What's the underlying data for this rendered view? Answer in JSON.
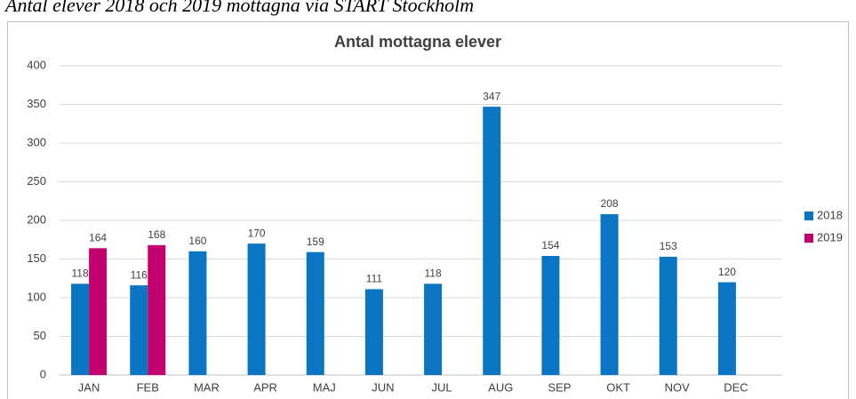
{
  "caption": "Antal elever 2018 och 2019 mottagna via START Stockholm",
  "chart_data": {
    "type": "bar",
    "title": "Antal mottagna elever",
    "categories": [
      "JAN",
      "FEB",
      "MAR",
      "APR",
      "MAJ",
      "JUN",
      "JUL",
      "AUG",
      "SEP",
      "OKT",
      "NOV",
      "DEC"
    ],
    "series": [
      {
        "name": "2018",
        "color": "#0a75c2",
        "values": [
          118,
          116,
          160,
          170,
          159,
          111,
          118,
          347,
          154,
          208,
          153,
          120
        ]
      },
      {
        "name": "2019",
        "color": "#c2006e",
        "values": [
          164,
          168,
          null,
          null,
          null,
          null,
          null,
          null,
          null,
          null,
          null,
          null
        ]
      }
    ],
    "ylim": [
      0,
      400
    ],
    "yticks": [
      0,
      50,
      100,
      150,
      200,
      250,
      300,
      350,
      400
    ],
    "grid": true,
    "legend": "right",
    "data_labels": true
  }
}
